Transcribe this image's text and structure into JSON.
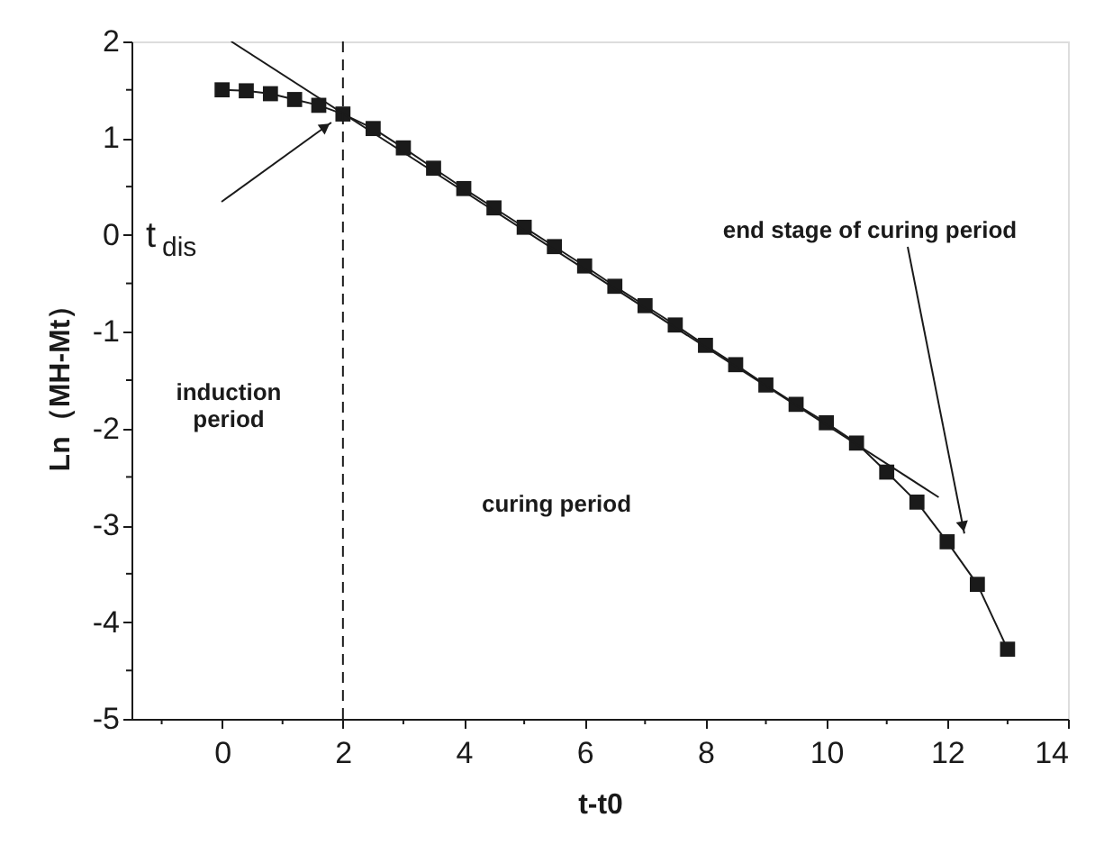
{
  "chart_data": {
    "type": "line",
    "xlabel": "t-t0",
    "ylabel": "Ln（MH-Mt）",
    "xlim": [
      -1.5,
      14
    ],
    "ylim": [
      -5,
      2
    ],
    "xticks": [
      {
        "value": -1,
        "label": null
      },
      0,
      {
        "value": 1,
        "label": null
      },
      2,
      {
        "value": 3,
        "label": null
      },
      4,
      {
        "value": 5,
        "label": null
      },
      6,
      {
        "value": 7,
        "label": null
      },
      8,
      {
        "value": 9,
        "label": null
      },
      10,
      {
        "value": 11,
        "label": null
      },
      12,
      {
        "value": 13,
        "label": null
      },
      14
    ],
    "yticks": [
      -5,
      {
        "value": -4.5,
        "label": null
      },
      -4,
      {
        "value": -3.5,
        "label": null
      },
      -3,
      {
        "value": -2.5,
        "label": null
      },
      -2,
      {
        "value": -1.5,
        "label": null
      },
      -1,
      {
        "value": -0.5,
        "label": null
      },
      0,
      {
        "value": 0.5,
        "label": null
      },
      1,
      {
        "value": 1.5,
        "label": null
      },
      2
    ],
    "grid": false,
    "series": [
      {
        "color": "#1a1a1a",
        "marker": "square",
        "x": [
          0,
          0.4,
          0.8,
          1.2,
          1.6,
          2,
          2.5,
          3,
          3.5,
          4,
          4.5,
          5,
          5.5,
          6,
          6.5,
          7,
          7.5,
          8,
          8.5,
          9,
          9.5,
          10,
          10.5,
          11,
          11.5,
          12,
          12.5,
          13
        ],
        "values": [
          1.5,
          1.49,
          1.46,
          1.4,
          1.34,
          1.25,
          1.1,
          0.9,
          0.69,
          0.48,
          0.28,
          0.08,
          -0.12,
          -0.32,
          -0.53,
          -0.73,
          -0.93,
          -1.14,
          -1.34,
          -1.55,
          -1.75,
          -1.94,
          -2.15,
          -2.45,
          -2.76,
          -3.17,
          -3.61,
          -4.28
        ]
      },
      {
        "color": "#1a1a1a",
        "marker": "none",
        "x": [
          0.15,
          11.86
        ],
        "values": [
          2.0,
          -2.71
        ]
      }
    ],
    "ref_lines": [
      {
        "axis": "x",
        "value": 2,
        "line_style": "dashed",
        "color": "#1a1a1a"
      }
    ],
    "annotations": [
      {
        "text": "t$_{dis}$",
        "x": 2,
        "y": 1.25
      },
      "end stage of curing period",
      "induction\nperiod",
      "curing period"
    ]
  }
}
